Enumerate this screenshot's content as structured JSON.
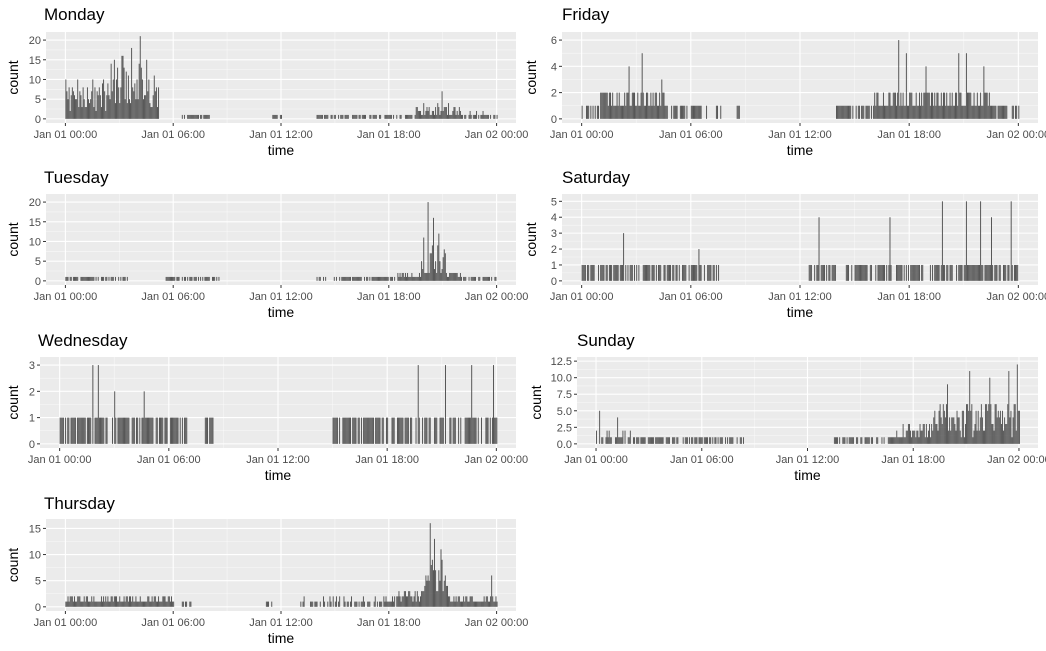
{
  "colors": {
    "panel_bg": "#ebebeb",
    "grid_major": "#ffffff",
    "bar": "#4d4d4d",
    "tick_text": "#4d4d4d",
    "text": "#000000"
  },
  "chart_data": [
    {
      "type": "bar",
      "title": "Monday",
      "xlabel": "time",
      "ylabel": "count",
      "x_ticks": [
        "Jan 01 00:00",
        "Jan 01 06:00",
        "Jan 01 12:00",
        "Jan 01 18:00",
        "Jan 02 00:00"
      ],
      "y_ticks": [
        "0",
        "5",
        "10",
        "15",
        "20"
      ],
      "ylim": [
        0,
        21
      ],
      "xlim_hours": [
        0,
        24
      ],
      "grid": true,
      "profile": [
        {
          "from_hour": 0.0,
          "to_hour": 2.5,
          "count": 8
        },
        {
          "from_hour": 2.5,
          "to_hour": 4.5,
          "count": 13
        },
        {
          "from_hour": 4.5,
          "to_hour": 5.2,
          "count": 10
        },
        {
          "from_hour": 6.5,
          "to_hour": 8.0,
          "count": 1
        },
        {
          "from_hour": 11.5,
          "to_hour": 12.0,
          "count": 1
        },
        {
          "from_hour": 14.0,
          "to_hour": 19.5,
          "count": 1
        },
        {
          "from_hour": 19.5,
          "to_hour": 22.0,
          "count": 3
        },
        {
          "from_hour": 22.0,
          "to_hour": 24.0,
          "count": 1.5
        }
      ],
      "peaks": [
        {
          "hour": 4.15,
          "count": 21
        },
        {
          "hour": 3.65,
          "count": 18
        },
        {
          "hour": 4.5,
          "count": 15
        },
        {
          "hour": 3.2,
          "count": 16
        },
        {
          "hour": 20.95,
          "count": 7
        }
      ]
    },
    {
      "type": "bar",
      "title": "Tuesday",
      "xlabel": "time",
      "ylabel": "count",
      "x_ticks": [
        "Jan 01 00:00",
        "Jan 01 06:00",
        "Jan 01 12:00",
        "Jan 01 18:00",
        "Jan 02 00:00"
      ],
      "y_ticks": [
        "0",
        "5",
        "10",
        "15",
        "20"
      ],
      "ylim": [
        0,
        21
      ],
      "xlim_hours": [
        0,
        24
      ],
      "grid": true,
      "profile": [
        {
          "from_hour": 0.0,
          "to_hour": 3.5,
          "count": 1
        },
        {
          "from_hour": 5.5,
          "to_hour": 8.5,
          "count": 1
        },
        {
          "from_hour": 14.0,
          "to_hour": 18.5,
          "count": 1
        },
        {
          "from_hour": 18.5,
          "to_hour": 19.8,
          "count": 2
        },
        {
          "from_hour": 19.8,
          "to_hour": 21.2,
          "count": 7
        },
        {
          "from_hour": 21.2,
          "to_hour": 22.0,
          "count": 2
        },
        {
          "from_hour": 22.0,
          "to_hour": 24.0,
          "count": 1
        }
      ],
      "peaks": [
        {
          "hour": 20.15,
          "count": 20
        },
        {
          "hour": 20.45,
          "count": 16
        },
        {
          "hour": 20.75,
          "count": 12
        },
        {
          "hour": 19.9,
          "count": 11
        }
      ]
    },
    {
      "type": "bar",
      "title": "Wednesday",
      "xlabel": "time",
      "ylabel": "count",
      "x_ticks": [
        "Jan 01 00:00",
        "Jan 01 06:00",
        "Jan 01 12:00",
        "Jan 01 18:00",
        "Jan 02 00:00"
      ],
      "y_ticks": [
        "0",
        "1",
        "2",
        "3"
      ],
      "ylim": [
        0,
        3.15
      ],
      "xlim_hours": [
        0,
        24
      ],
      "grid": true,
      "profile": [
        {
          "from_hour": 0.0,
          "to_hour": 7.0,
          "count": 1
        },
        {
          "from_hour": 8.0,
          "to_hour": 8.5,
          "count": 1
        },
        {
          "from_hour": 15.0,
          "to_hour": 24.0,
          "count": 1
        }
      ],
      "peaks": [
        {
          "hour": 1.8,
          "count": 3
        },
        {
          "hour": 2.1,
          "count": 3
        },
        {
          "hour": 3.0,
          "count": 2
        },
        {
          "hour": 4.6,
          "count": 2
        },
        {
          "hour": 19.7,
          "count": 3
        },
        {
          "hour": 21.2,
          "count": 3
        },
        {
          "hour": 22.6,
          "count": 3
        },
        {
          "hour": 23.8,
          "count": 3
        }
      ]
    },
    {
      "type": "bar",
      "title": "Thursday",
      "xlabel": "time",
      "ylabel": "count",
      "x_ticks": [
        "Jan 01 00:00",
        "Jan 01 06:00",
        "Jan 01 12:00",
        "Jan 01 18:00",
        "Jan 02 00:00"
      ],
      "y_ticks": [
        "0",
        "5",
        "10",
        "15"
      ],
      "ylim": [
        0,
        16
      ],
      "xlim_hours": [
        0,
        24
      ],
      "grid": true,
      "profile": [
        {
          "from_hour": 0.0,
          "to_hour": 6.0,
          "count": 2
        },
        {
          "from_hour": 6.5,
          "to_hour": 7.0,
          "count": 1
        },
        {
          "from_hour": 11.0,
          "to_hour": 11.5,
          "count": 1
        },
        {
          "from_hour": 13.0,
          "to_hour": 18.5,
          "count": 1.5
        },
        {
          "from_hour": 18.5,
          "to_hour": 20.0,
          "count": 3
        },
        {
          "from_hour": 20.0,
          "to_hour": 21.3,
          "count": 8
        },
        {
          "from_hour": 21.3,
          "to_hour": 24.0,
          "count": 2
        }
      ],
      "peaks": [
        {
          "hour": 20.3,
          "count": 16
        },
        {
          "hour": 20.5,
          "count": 13
        },
        {
          "hour": 20.9,
          "count": 11
        },
        {
          "hour": 23.7,
          "count": 6
        }
      ]
    },
    {
      "type": "bar",
      "title": "Friday",
      "xlabel": "time",
      "ylabel": "count",
      "x_ticks": [
        "Jan 01 00:00",
        "Jan 01 06:00",
        "Jan 01 12:00",
        "Jan 01 18:00",
        "Jan 02 00:00"
      ],
      "y_ticks": [
        "0",
        "2",
        "4",
        "6"
      ],
      "ylim": [
        0,
        6.3
      ],
      "xlim_hours": [
        0,
        24
      ],
      "grid": true,
      "profile": [
        {
          "from_hour": 0.0,
          "to_hour": 1.0,
          "count": 1
        },
        {
          "from_hour": 1.0,
          "to_hour": 4.5,
          "count": 2
        },
        {
          "from_hour": 4.5,
          "to_hour": 7.0,
          "count": 1
        },
        {
          "from_hour": 7.3,
          "to_hour": 7.6,
          "count": 1
        },
        {
          "from_hour": 8.5,
          "to_hour": 8.8,
          "count": 1
        },
        {
          "from_hour": 14.0,
          "to_hour": 16.0,
          "count": 1
        },
        {
          "from_hour": 16.0,
          "to_hour": 22.5,
          "count": 2
        },
        {
          "from_hour": 22.5,
          "to_hour": 24.0,
          "count": 1
        }
      ],
      "peaks": [
        {
          "hour": 3.3,
          "count": 5
        },
        {
          "hour": 2.6,
          "count": 4
        },
        {
          "hour": 4.4,
          "count": 3
        },
        {
          "hour": 17.4,
          "count": 6
        },
        {
          "hour": 17.8,
          "count": 5
        },
        {
          "hour": 20.7,
          "count": 5
        },
        {
          "hour": 21.1,
          "count": 5
        },
        {
          "hour": 18.9,
          "count": 4
        },
        {
          "hour": 22.1,
          "count": 4
        }
      ]
    },
    {
      "type": "bar",
      "title": "Saturday",
      "xlabel": "time",
      "ylabel": "count",
      "x_ticks": [
        "Jan 01 00:00",
        "Jan 01 06:00",
        "Jan 01 12:00",
        "Jan 01 18:00",
        "Jan 02 00:00"
      ],
      "y_ticks": [
        "0",
        "1",
        "2",
        "3",
        "4",
        "5"
      ],
      "ylim": [
        0,
        5.2
      ],
      "xlim_hours": [
        0,
        24
      ],
      "grid": true,
      "profile": [
        {
          "from_hour": 0.0,
          "to_hour": 7.5,
          "count": 1
        },
        {
          "from_hour": 12.5,
          "to_hour": 14.0,
          "count": 1
        },
        {
          "from_hour": 14.5,
          "to_hour": 18.0,
          "count": 1
        },
        {
          "from_hour": 18.0,
          "to_hour": 24.0,
          "count": 1
        }
      ],
      "peaks": [
        {
          "hour": 2.3,
          "count": 3
        },
        {
          "hour": 6.4,
          "count": 2
        },
        {
          "hour": 13.0,
          "count": 4
        },
        {
          "hour": 16.9,
          "count": 4
        },
        {
          "hour": 19.8,
          "count": 5
        },
        {
          "hour": 21.1,
          "count": 5
        },
        {
          "hour": 21.9,
          "count": 5
        },
        {
          "hour": 22.5,
          "count": 4
        },
        {
          "hour": 23.6,
          "count": 5
        }
      ]
    },
    {
      "type": "bar",
      "title": "Sunday",
      "xlabel": "time",
      "ylabel": "count",
      "x_ticks": [
        "Jan 01 00:00",
        "Jan 01 06:00",
        "Jan 01 12:00",
        "Jan 01 18:00",
        "Jan 02 00:00"
      ],
      "y_ticks": [
        "0.0",
        "2.5",
        "5.0",
        "7.5",
        "10.0",
        "12.5"
      ],
      "ylim": [
        0,
        12.5
      ],
      "xlim_hours": [
        0,
        24
      ],
      "grid": true,
      "profile": [
        {
          "from_hour": 0.0,
          "to_hour": 2.0,
          "count": 1.5
        },
        {
          "from_hour": 2.0,
          "to_hour": 6.0,
          "count": 1
        },
        {
          "from_hour": 6.0,
          "to_hour": 8.5,
          "count": 1
        },
        {
          "from_hour": 13.5,
          "to_hour": 17.0,
          "count": 1
        },
        {
          "from_hour": 17.0,
          "to_hour": 19.0,
          "count": 2.5
        },
        {
          "from_hour": 19.0,
          "to_hour": 24.0,
          "count": 5
        }
      ],
      "peaks": [
        {
          "hour": 0.2,
          "count": 5
        },
        {
          "hour": 1.2,
          "count": 4
        },
        {
          "hour": 19.9,
          "count": 9
        },
        {
          "hour": 21.2,
          "count": 11
        },
        {
          "hour": 22.3,
          "count": 10
        },
        {
          "hour": 23.4,
          "count": 11
        },
        {
          "hour": 23.9,
          "count": 12
        }
      ]
    }
  ]
}
